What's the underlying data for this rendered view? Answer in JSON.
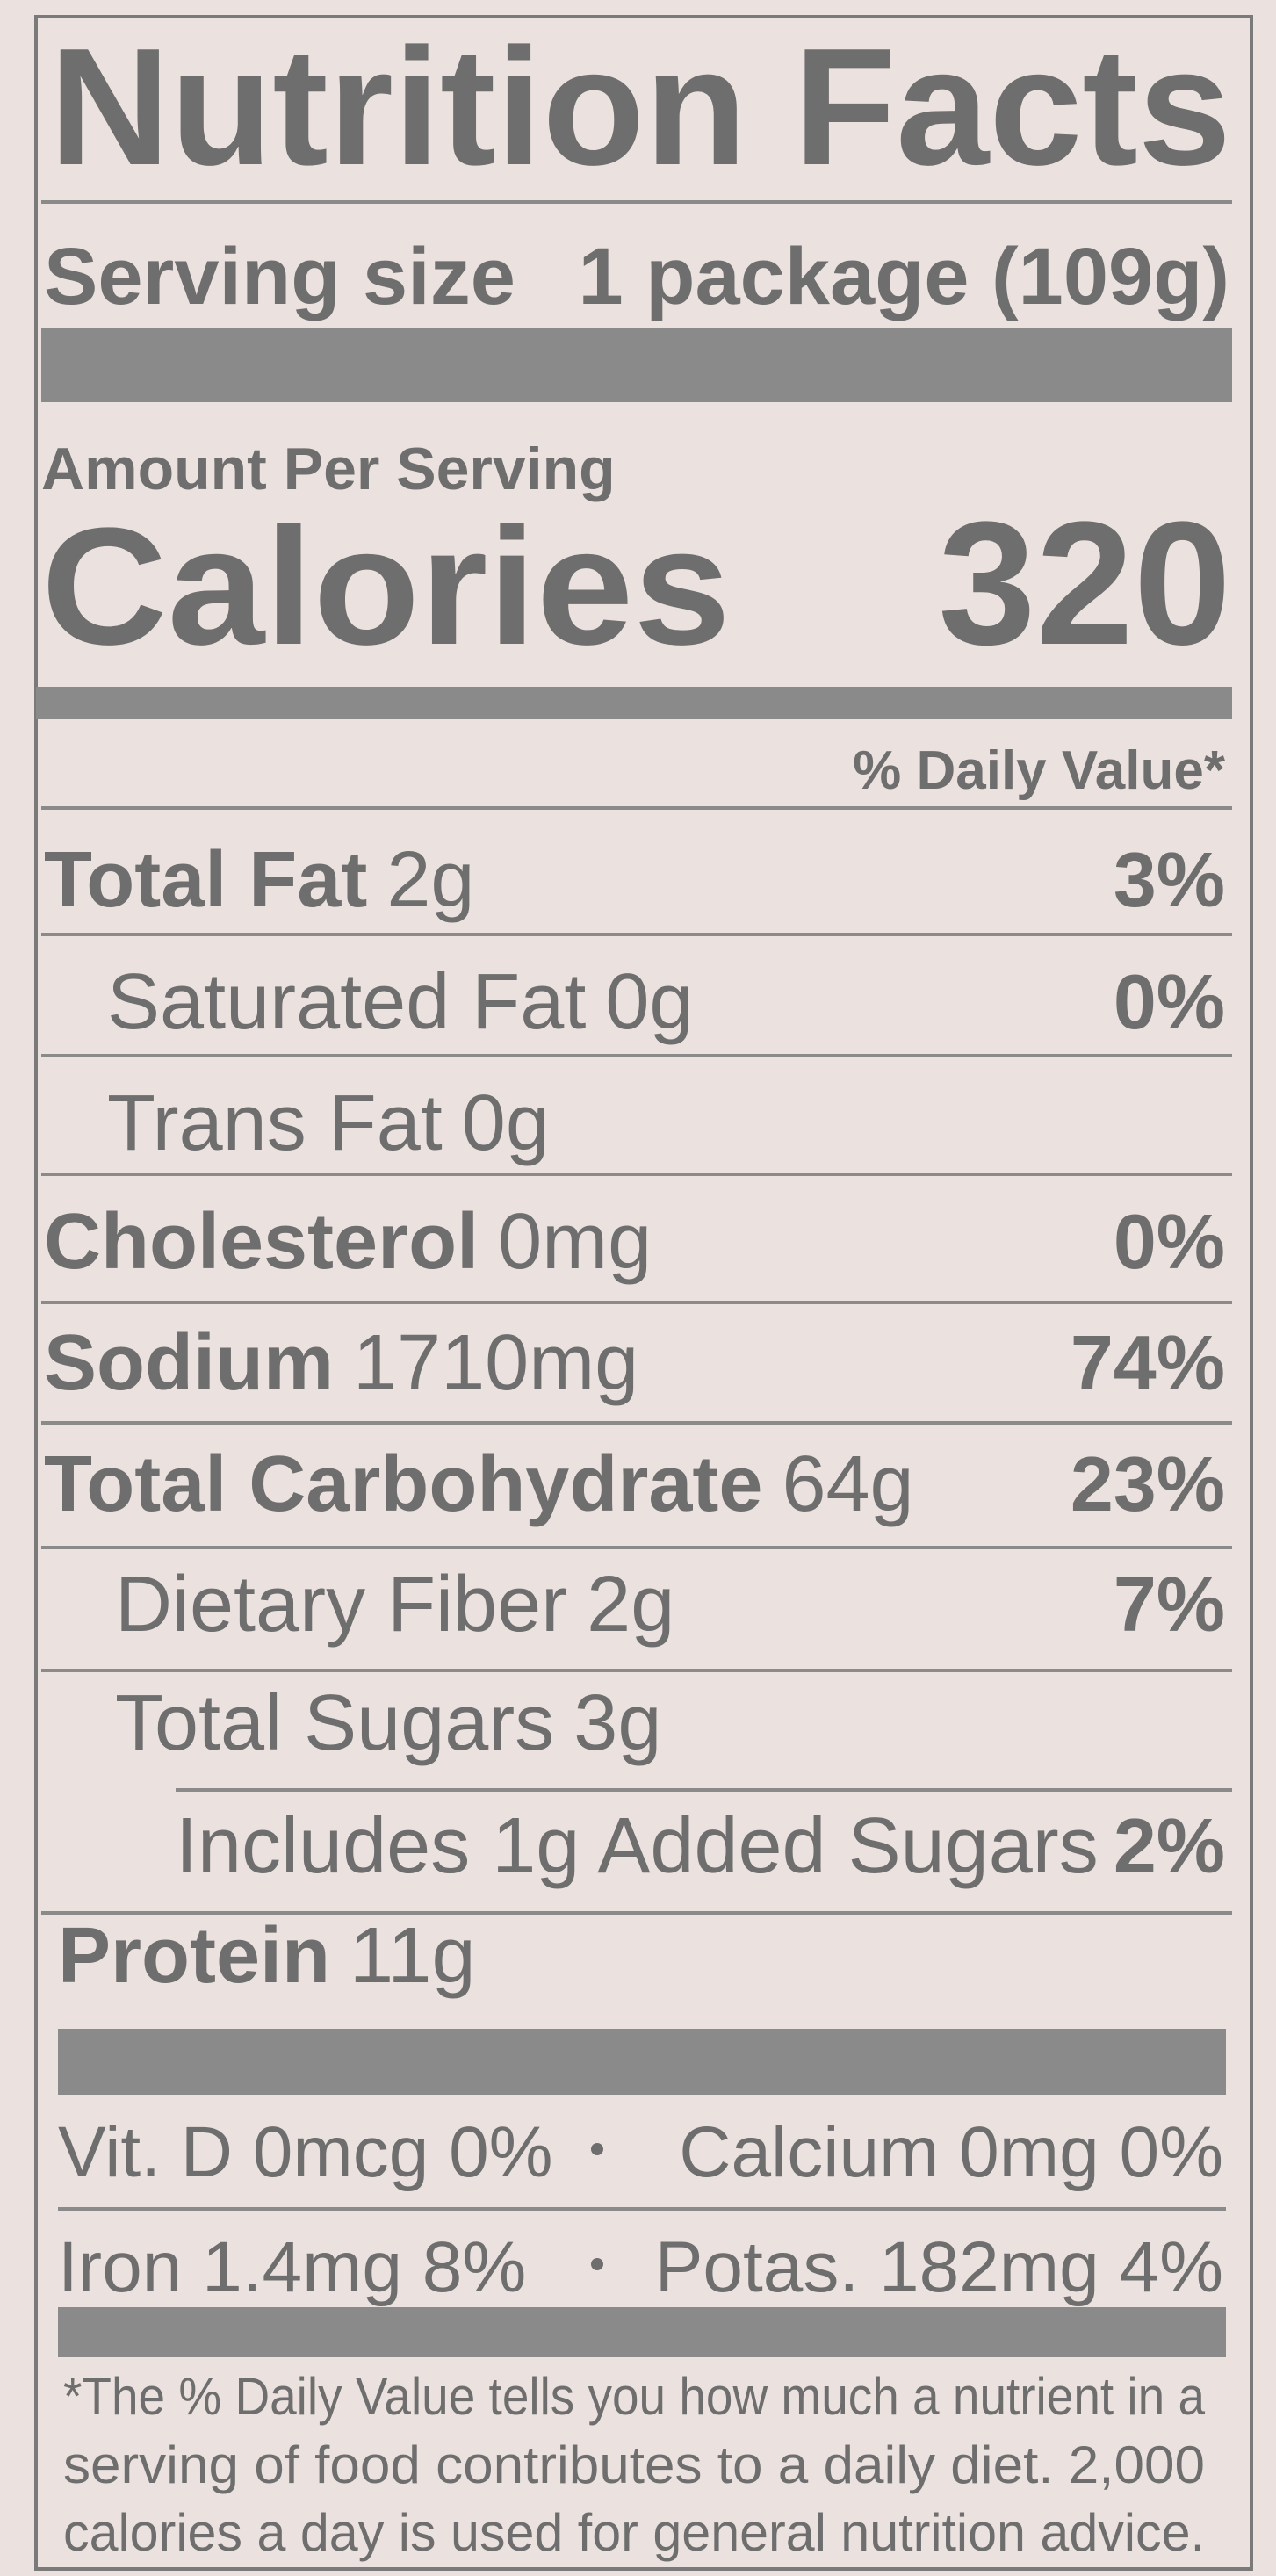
{
  "title": "Nutrition Facts",
  "serving": {
    "label": "Serving size",
    "value": "1 package (109g)"
  },
  "amount_per_serving": "Amount Per Serving",
  "calories": {
    "label": "Calories",
    "value": "320"
  },
  "daily_value_header": "% Daily Value*",
  "rows": [
    {
      "name": "Total Fat",
      "amount": "2g",
      "dv": "3%"
    },
    {
      "name": "Saturated Fat",
      "amount": "0g",
      "dv": "0%"
    },
    {
      "name": "Trans Fat",
      "amount": "0g"
    },
    {
      "name": "Cholesterol",
      "amount": "0mg",
      "dv": "0%"
    },
    {
      "name": "Sodium",
      "amount": "1710mg",
      "dv": "74%"
    },
    {
      "name": "Total Carbohydrate",
      "amount": "64g",
      "dv": "23%"
    },
    {
      "name": "Dietary Fiber",
      "amount": "2g",
      "dv": "7%"
    },
    {
      "name": "Total Sugars",
      "amount": "3g"
    },
    {
      "name": "Includes 1g Added Sugars",
      "dv": "2%"
    },
    {
      "name": "Protein",
      "amount": "11g"
    }
  ],
  "vitamins": [
    [
      "Vit. D 0mcg 0%",
      "Calcium 0mg 0%"
    ],
    [
      "Iron 1.4mg 8%",
      "Potas. 182mg 4%"
    ]
  ],
  "footnote": [
    "*The % Daily Value tells you how much a nutrient in a",
    "serving of food contributes to a daily diet. 2,000",
    "calories a day is used for general nutrition advice."
  ]
}
